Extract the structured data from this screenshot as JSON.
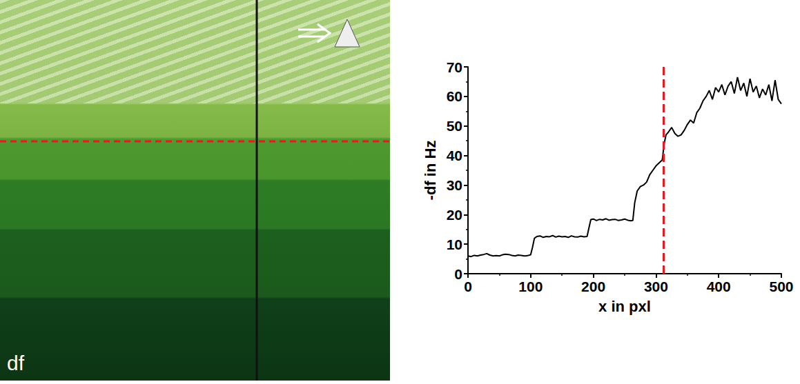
{
  "image_panel": {
    "label": "df"
  },
  "chart_data": {
    "type": "line",
    "x_label": "x in pxl",
    "y_label": "-df in Hz",
    "color": "#000000",
    "x": [
      0,
      5,
      10,
      15,
      20,
      25,
      30,
      35,
      40,
      45,
      50,
      55,
      60,
      65,
      70,
      75,
      80,
      85,
      90,
      95,
      100,
      103,
      106,
      110,
      115,
      120,
      125,
      130,
      135,
      140,
      145,
      150,
      155,
      160,
      165,
      170,
      175,
      180,
      185,
      190,
      193,
      196,
      200,
      205,
      210,
      215,
      220,
      225,
      230,
      235,
      240,
      245,
      250,
      255,
      260,
      263,
      266,
      270,
      275,
      280,
      285,
      290,
      295,
      300,
      305,
      310,
      313,
      316,
      320,
      325,
      330,
      335,
      340,
      345,
      350,
      355,
      360,
      365,
      370,
      375,
      380,
      385,
      390,
      395,
      400,
      405,
      410,
      415,
      420,
      425,
      430,
      435,
      440,
      445,
      450,
      455,
      460,
      465,
      470,
      475,
      480,
      485,
      490,
      495,
      500
    ],
    "values": [
      6.0,
      5.8,
      6.2,
      6.0,
      6.3,
      6.5,
      6.8,
      6.3,
      6.0,
      6.1,
      6.0,
      6.4,
      6.6,
      6.5,
      6.2,
      6.0,
      6.3,
      6.2,
      6.0,
      6.1,
      6.4,
      9.0,
      12.0,
      12.6,
      12.8,
      12.3,
      12.6,
      12.5,
      12.9,
      12.4,
      12.7,
      12.5,
      12.6,
      12.3,
      12.8,
      12.5,
      12.4,
      12.7,
      12.5,
      12.6,
      15.5,
      18.3,
      18.5,
      18.0,
      18.4,
      18.2,
      18.6,
      18.1,
      18.3,
      18.4,
      18.0,
      18.2,
      18.5,
      18.1,
      17.9,
      18.0,
      24.0,
      28.0,
      29.5,
      30.0,
      31.0,
      33.5,
      35.0,
      36.5,
      37.5,
      38.5,
      44.0,
      47.0,
      48.0,
      49.5,
      47.5,
      46.5,
      47.0,
      48.5,
      50.5,
      52.0,
      51.0,
      54.5,
      56.0,
      58.5,
      60.0,
      62.0,
      59.0,
      63.0,
      61.5,
      64.0,
      60.5,
      63.5,
      65.0,
      61.0,
      66.5,
      62.0,
      64.5,
      60.0,
      66.0,
      61.5,
      63.5,
      59.5,
      62.5,
      60.5,
      64.0,
      58.5,
      65.5,
      59.0,
      57.5
    ],
    "xlim": [
      0,
      500
    ],
    "xticks": [
      0,
      100,
      200,
      300,
      400,
      500
    ],
    "ylim": [
      0,
      70
    ],
    "yticks": [
      0,
      10,
      20,
      30,
      40,
      50,
      60,
      70
    ],
    "grid": false,
    "legend": false,
    "reference_line": {
      "x": 312,
      "color": "#e8191f",
      "line_style": "dashed"
    }
  }
}
